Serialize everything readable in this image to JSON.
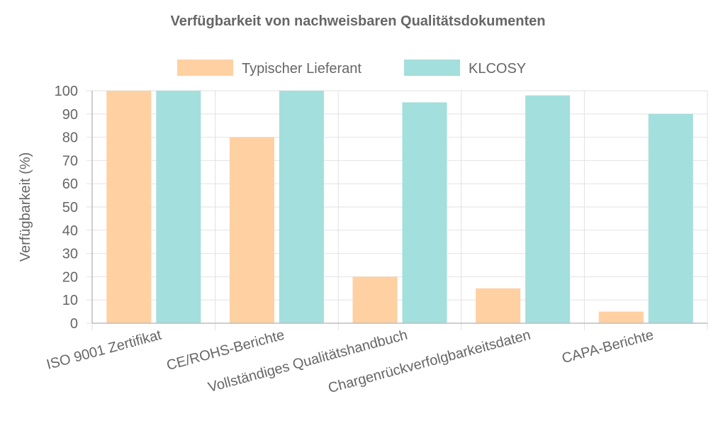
{
  "chart_data": {
    "type": "bar",
    "title": "Verfügbarkeit von nachweisbaren Qualitätsdokumenten",
    "ylabel": "Verfügbarkeit (%)",
    "xlabel": "",
    "ylim": [
      0,
      100
    ],
    "yticks": [
      0,
      10,
      20,
      30,
      40,
      50,
      60,
      70,
      80,
      90,
      100
    ],
    "grid": true,
    "legend_position": "top",
    "categories": [
      "ISO 9001 Zertifikat",
      "CE/ROHS-Berichte",
      "Vollständiges Qualitätshandbuch",
      "Chargenrückverfolgbarkeitsdaten",
      "CAPA-Berichte"
    ],
    "series": [
      {
        "name": "Typischer Lieferant",
        "color": "#ffd0a1",
        "values": [
          100,
          80,
          20,
          15,
          5
        ]
      },
      {
        "name": "KLCOSY",
        "color": "#a3dfdc",
        "values": [
          100,
          100,
          95,
          98,
          90
        ]
      }
    ]
  }
}
